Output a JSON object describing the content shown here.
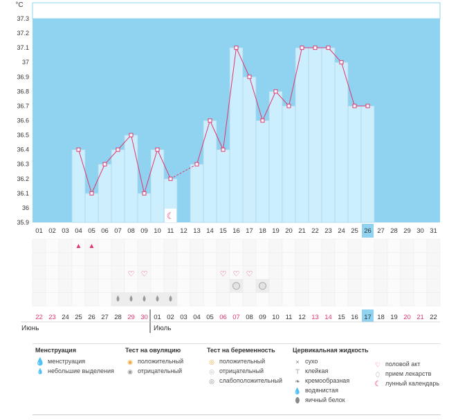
{
  "chart_data": {
    "type": "bar",
    "unit_label": "°C",
    "y_ticks": [
      "37.3",
      "37.2",
      "37.1",
      "37",
      "36.9",
      "36.8",
      "36.7",
      "36.6",
      "36.5",
      "36.4",
      "36.3",
      "36.2",
      "36.1",
      "36",
      "35.9"
    ],
    "ylim": [
      35.9,
      37.3
    ],
    "cycle_days": [
      "01",
      "02",
      "03",
      "04",
      "05",
      "06",
      "07",
      "08",
      "09",
      "10",
      "11",
      "12",
      "13",
      "14",
      "15",
      "16",
      "17",
      "18",
      "19",
      "20",
      "21",
      "22",
      "23",
      "24",
      "25",
      "26",
      "27",
      "28",
      "29",
      "30",
      "31"
    ],
    "current_cycle_day": "26",
    "temperatures": [
      null,
      null,
      null,
      36.4,
      36.1,
      36.3,
      36.4,
      36.5,
      36.1,
      36.4,
      36.2,
      null,
      36.3,
      36.6,
      36.4,
      37.1,
      36.9,
      36.6,
      36.8,
      36.7,
      37.1,
      37.1,
      37.1,
      37.0,
      36.7,
      36.7,
      null,
      null,
      null,
      null,
      null
    ],
    "dashed_gap": [
      11,
      13
    ],
    "calendar_dates": [
      "22",
      "23",
      "24",
      "25",
      "26",
      "27",
      "28",
      "29",
      "30",
      "01",
      "02",
      "03",
      "04",
      "05",
      "06",
      "07",
      "08",
      "09",
      "10",
      "11",
      "12",
      "13",
      "14",
      "15",
      "16",
      "17",
      "18",
      "19",
      "20",
      "21",
      "22"
    ],
    "weekend_dates_columns": [
      1,
      2,
      8,
      9,
      15,
      16,
      22,
      23,
      29,
      30
    ],
    "today_column": 26,
    "month_labels": [
      {
        "label": "Июнь",
        "column": 1
      },
      {
        "label": "Июль",
        "column": 10
      }
    ],
    "moon_column": 11,
    "menstruation_columns": [
      4,
      5
    ],
    "intercourse_columns": [
      8,
      9,
      15,
      16,
      17
    ],
    "pregnancy_test_columns": [
      16,
      18
    ],
    "cervical_watery_columns": [
      7,
      8,
      9,
      10,
      11
    ]
  },
  "legend": {
    "menstruation": {
      "title": "Менструация",
      "items": [
        {
          "icon": "menstruation-icon",
          "label": "менструация"
        },
        {
          "icon": "spotting-icon",
          "label": "небольшие выделения"
        }
      ]
    },
    "ovulation_test": {
      "title": "Тест на овуляцию",
      "items": [
        {
          "icon": "positive-test-icon",
          "label": "положительный"
        },
        {
          "icon": "negative-test-icon",
          "label": "отрицательный"
        }
      ]
    },
    "pregnancy_test": {
      "title": "Тест на беременность",
      "items": [
        {
          "icon": "positive-test-icon",
          "label": "положительный"
        },
        {
          "icon": "negative-test-icon",
          "label": "отрицательный"
        },
        {
          "icon": "weak-positive-test-icon",
          "label": "слабоположительный"
        }
      ]
    },
    "cervical_fluid": {
      "title": "Цервикальная жидкость",
      "items": [
        {
          "icon": "dry-icon",
          "label": "сухо"
        },
        {
          "icon": "sticky-icon",
          "label": "клейкая"
        },
        {
          "icon": "creamy-icon",
          "label": "кремообразная"
        },
        {
          "icon": "watery-icon",
          "label": "водянистая"
        },
        {
          "icon": "egg-white-icon",
          "label": "яичный белок"
        }
      ]
    },
    "other": {
      "items": [
        {
          "icon": "heart-icon",
          "label": "половой акт"
        },
        {
          "icon": "pill-icon",
          "label": "прием лекарств"
        },
        {
          "icon": "moon-icon",
          "label": "лунный календарь"
        }
      ]
    }
  },
  "colors": {
    "band": "#8fd3f0",
    "bar_fill": "#cdeefc",
    "bar_stroke": "#a9d8ee",
    "line": "#e0356d",
    "today": "#8fd3f0",
    "weekend_text": "#e0356d",
    "grid": "#ececec"
  }
}
